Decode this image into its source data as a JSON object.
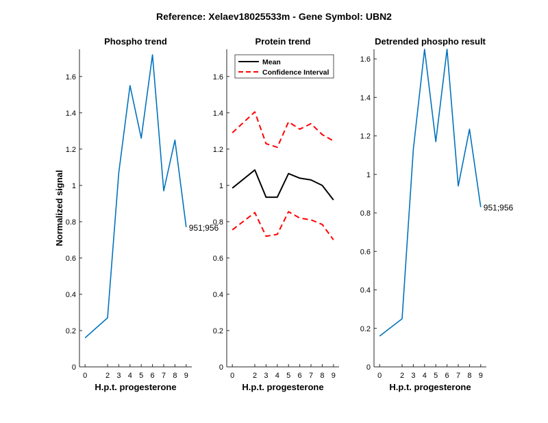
{
  "figure_title": "Reference:  Xelaev18025533m - Gene Symbol:  UBN2",
  "colors": {
    "phospho": "#0072BD",
    "mean": "#000000",
    "ci": "#FF0000"
  },
  "chart_data": [
    {
      "type": "line",
      "title": "Phospho trend",
      "xlabel": "H.p.t. progesterone",
      "ylabel": "Normalized signal",
      "x": [
        0,
        2,
        3,
        4,
        5,
        6,
        7,
        8,
        9
      ],
      "xlim": [
        -0.5,
        9.5
      ],
      "ylim": [
        0,
        1.75
      ],
      "yticks": [
        0,
        0.2,
        0.4,
        0.6,
        0.8,
        1,
        1.2,
        1.4,
        1.6
      ],
      "ytick_labels": [
        "0",
        "0.2",
        "0.4",
        "0.6",
        "0.8",
        "1",
        "1.2",
        "1.4",
        "1.6"
      ],
      "series": [
        {
          "values": [
            0.16,
            0.27,
            1.07,
            1.55,
            1.26,
            1.72,
            0.97,
            1.25,
            0.77
          ]
        }
      ],
      "annotation": {
        "text": "951;956",
        "x": 9,
        "y": 0.77
      }
    },
    {
      "type": "line",
      "title": "Protein trend",
      "xlabel": "H.p.t. progesterone",
      "ylabel": "",
      "x": [
        0,
        2,
        3,
        4,
        5,
        6,
        7,
        8,
        9
      ],
      "xlim": [
        -0.5,
        9.5
      ],
      "ylim": [
        0,
        1.75
      ],
      "yticks": [
        0,
        0.2,
        0.4,
        0.6,
        0.8,
        1,
        1.2,
        1.4,
        1.6
      ],
      "ytick_labels": [
        "0",
        "0.2",
        "0.4",
        "0.6",
        "0.8",
        "1",
        "1.2",
        "1.4",
        "1.6"
      ],
      "legend": "top-left",
      "series": [
        {
          "name": "Mean",
          "style": "solid",
          "values": [
            0.985,
            1.085,
            0.935,
            0.935,
            1.065,
            1.04,
            1.03,
            1.0,
            0.92
          ]
        },
        {
          "name": "Confidence Interval",
          "style": "dashed",
          "values": [
            1.29,
            1.405,
            1.23,
            1.21,
            1.35,
            1.31,
            1.34,
            1.28,
            1.245
          ]
        },
        {
          "name": "",
          "style": "dashed",
          "values": [
            0.755,
            0.85,
            0.72,
            0.73,
            0.855,
            0.82,
            0.81,
            0.785,
            0.7
          ]
        }
      ]
    },
    {
      "type": "line",
      "title": "Detrended phospho result",
      "xlabel": "H.p.t. progesterone",
      "ylabel": "",
      "x": [
        0,
        2,
        3,
        4,
        5,
        6,
        7,
        8,
        9
      ],
      "xlim": [
        -0.5,
        9.5
      ],
      "ylim": [
        0,
        1.65
      ],
      "yticks": [
        0,
        0.2,
        0.4,
        0.6,
        0.8,
        1,
        1.2,
        1.4,
        1.6
      ],
      "ytick_labels": [
        "0",
        "0.2",
        "0.4",
        "0.6",
        "0.8",
        "1",
        "1.2",
        "1.4",
        "1.6"
      ],
      "series": [
        {
          "values": [
            0.16,
            0.25,
            1.13,
            1.65,
            1.17,
            1.65,
            0.94,
            1.235,
            0.83
          ]
        }
      ],
      "annotation": {
        "text": "951;956",
        "x": 9,
        "y": 0.83
      }
    }
  ]
}
